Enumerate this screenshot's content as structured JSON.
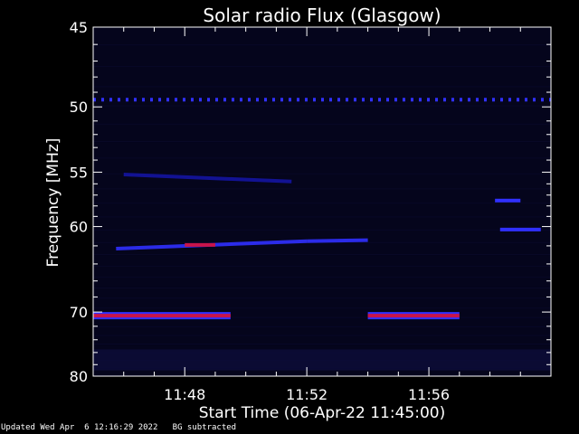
{
  "chart_data": {
    "type": "heatmap",
    "title": "Solar radio Flux (Glasgow)",
    "xlabel": "Start Time (06-Apr-22 11:45:00)",
    "ylabel": "Frequency [MHz]",
    "xlim": [
      "11:45:00",
      "12:00:00"
    ],
    "ylim": [
      45,
      80
    ],
    "y_scale": "reciprocal",
    "x_ticks": [
      "11:48",
      "11:52",
      "11:56"
    ],
    "y_ticks": [
      45,
      50,
      55,
      60,
      70,
      80
    ],
    "colors": {
      "background": "#000000",
      "plot_bg": "#05051c",
      "low": "#1414a0",
      "mid": "#3030ff",
      "high": "#c8144a",
      "axes": "#ffffff"
    },
    "features": [
      {
        "name": "constant-line",
        "freq_mhz": 49.5,
        "start": "11:45:00",
        "end": "12:00:00",
        "level": "mid",
        "dashed": true
      },
      {
        "name": "drifting-band",
        "freq_start_mhz": 55.2,
        "freq_end_mhz": 55.8,
        "start": "11:46:00",
        "end": "11:51:30",
        "level": "low"
      },
      {
        "name": "drifting-band",
        "freq_start_mhz": 62.3,
        "freq_end_mhz": 61.5,
        "start": "11:45:45",
        "end": "11:52:00",
        "level": "mid"
      },
      {
        "name": "drifting-band",
        "freq_start_mhz": 61.5,
        "freq_end_mhz": 61.4,
        "start": "11:52:00",
        "end": "11:54:00",
        "level": "mid"
      },
      {
        "name": "hot-segment",
        "freq_mhz": 61.9,
        "start": "11:48:00",
        "end": "11:49:00",
        "level": "high"
      },
      {
        "name": "interference-band",
        "freq_mhz": 70.5,
        "start": "11:45:00",
        "end": "11:49:30",
        "level": "high"
      },
      {
        "name": "interference-band",
        "freq_mhz": 70.5,
        "start": "11:54:00",
        "end": "11:57:00",
        "level": "high"
      },
      {
        "name": "short-band",
        "freq_mhz": 57.5,
        "start": "11:58:10",
        "end": "11:59:00",
        "level": "mid"
      },
      {
        "name": "short-band",
        "freq_mhz": 60.3,
        "start": "11:58:20",
        "end": "11:59:40",
        "level": "mid"
      }
    ]
  },
  "footer": "Updated Wed Apr  6 12:16:29 2022   BG subtracted"
}
